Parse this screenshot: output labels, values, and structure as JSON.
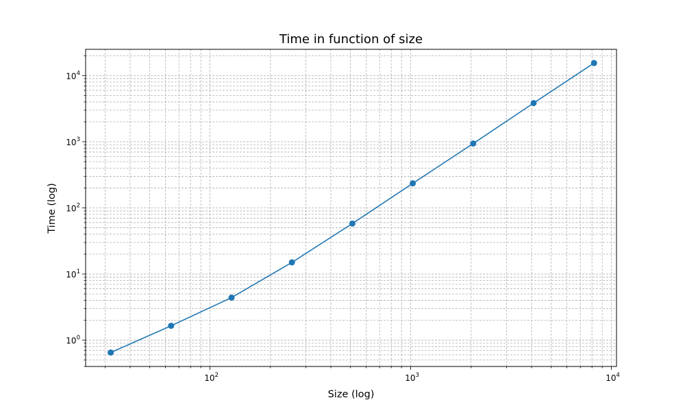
{
  "chart_data": {
    "type": "line",
    "title": "Time in function of size",
    "xlabel": "Size (log)",
    "ylabel": "Time (log)",
    "xscale": "log",
    "yscale": "log",
    "xlim": [
      24,
      10600
    ],
    "ylim": [
      0.4,
      25000
    ],
    "grid": true,
    "grid_style": "dashed, major and minor",
    "legend": "none",
    "x_ticks": [
      {
        "base": "10",
        "exp": "2",
        "value": 100
      },
      {
        "base": "10",
        "exp": "3",
        "value": 1000
      },
      {
        "base": "10",
        "exp": "4",
        "value": 10000
      }
    ],
    "y_ticks": [
      {
        "base": "10",
        "exp": "0",
        "value": 1
      },
      {
        "base": "10",
        "exp": "1",
        "value": 10
      },
      {
        "base": "10",
        "exp": "2",
        "value": 100
      },
      {
        "base": "10",
        "exp": "3",
        "value": 1000
      },
      {
        "base": "10",
        "exp": "4",
        "value": 10000
      }
    ],
    "series": [
      {
        "color": "#1f77b4",
        "marker": "circle",
        "x": [
          32,
          64,
          128,
          256,
          512,
          1024,
          2048,
          4096,
          8192
        ],
        "y": [
          0.65,
          1.65,
          4.4,
          15,
          58,
          235,
          940,
          3850,
          15500
        ]
      }
    ]
  }
}
